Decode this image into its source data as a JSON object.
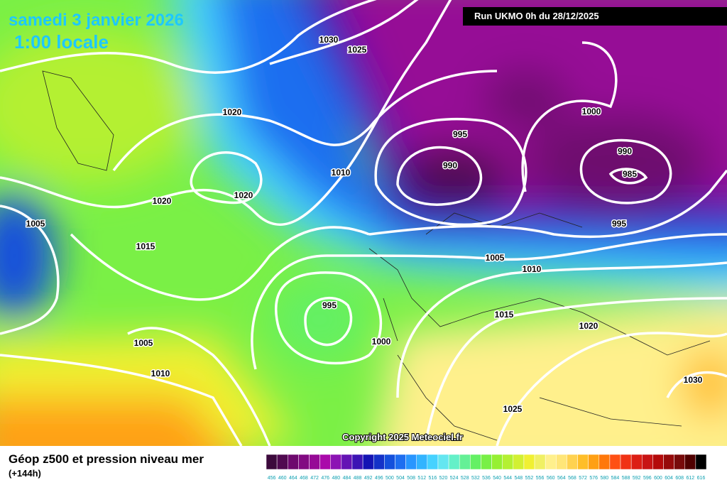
{
  "header": {
    "title": "samedi 3 janvier 2026",
    "time": "1:00 locale"
  },
  "run": "Run UKMO 0h du 28/12/2025",
  "copyright": "Copyright 2025 Meteociel.fr",
  "footer": {
    "title": "Géop z500 et pression niveau mer",
    "subtitle": "(+144h)"
  },
  "isobar_labels": [
    1030,
    1025,
    1020,
    1020,
    1020,
    1005,
    1015,
    1010,
    995,
    990,
    1000,
    990,
    985,
    995,
    1005,
    1010,
    995,
    1000,
    1015,
    1020,
    1005,
    1010,
    1030,
    1025
  ],
  "colorbar": {
    "labels": [
      456,
      460,
      464,
      468,
      472,
      476,
      480,
      484,
      488,
      492,
      496,
      500,
      504,
      508,
      512,
      516,
      520,
      524,
      528,
      532,
      536,
      540,
      544,
      548,
      552,
      556,
      560,
      564,
      568,
      572,
      576,
      580,
      584,
      588,
      592,
      596,
      600,
      604,
      608,
      612,
      616
    ],
    "colors": [
      "#3c0a3c",
      "#500a50",
      "#6e0a6e",
      "#820a82",
      "#960a96",
      "#aa0aaa",
      "#8c14b4",
      "#6414b4",
      "#3c14b4",
      "#1414b4",
      "#1432c8",
      "#1450dc",
      "#1e6ef0",
      "#2896ff",
      "#32b4ff",
      "#46d2ff",
      "#64e6f0",
      "#64f0c8",
      "#64f096",
      "#64f064",
      "#78f046",
      "#96f032",
      "#b4f032",
      "#d2f032",
      "#f0f032",
      "#f0f064",
      "#fff08c",
      "#ffe678",
      "#ffd250",
      "#ffbe28",
      "#ffa014",
      "#ff780a",
      "#ff5014",
      "#f03214",
      "#dc1e14",
      "#c81414",
      "#b40a0a",
      "#960a0a",
      "#780a0a",
      "#500000",
      "#000000"
    ]
  }
}
